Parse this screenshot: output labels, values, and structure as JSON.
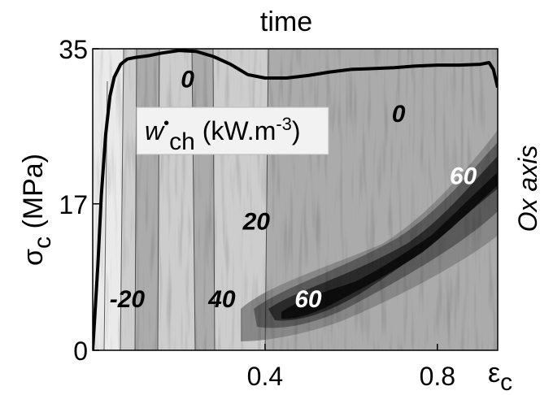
{
  "chart_data": {
    "type": "heatmap",
    "title": "time",
    "x_axis": {
      "symbol": "ε",
      "subscript": "c",
      "ticks": [
        "0.4",
        "0.8"
      ],
      "range": [
        0,
        0.94
      ]
    },
    "y_axis": {
      "symbol": "σ",
      "subscript": "c",
      "unit": " (MPa)",
      "ticks": [
        "0",
        "17",
        "35"
      ],
      "range": [
        0,
        35
      ]
    },
    "right_label": "Ox axis",
    "legend": {
      "prefix": "w",
      "mark": "•",
      "subscript": "ch",
      "unit": " (kW.m",
      "exponent": "-3",
      "close": ")"
    },
    "contour_labels": [
      {
        "text": "0",
        "x": 0.22,
        "y": 30.5,
        "color": "#000000"
      },
      {
        "text": "0",
        "x": 0.71,
        "y": 26.5,
        "color": "#000000"
      },
      {
        "text": "20",
        "x": 0.38,
        "y": 14.0,
        "color": "#000000"
      },
      {
        "text": "-20",
        "x": 0.08,
        "y": 5.0,
        "color": "#000000"
      },
      {
        "text": "40",
        "x": 0.3,
        "y": 5.0,
        "color": "#000000"
      },
      {
        "text": "60",
        "x": 0.5,
        "y": 5.0,
        "color": "#ffffff"
      },
      {
        "text": "60",
        "x": 0.86,
        "y": 19.3,
        "color": "#ffffff"
      }
    ],
    "stress_curve": {
      "x": [
        0,
        0.005,
        0.012,
        0.02,
        0.03,
        0.04,
        0.05,
        0.065,
        0.08,
        0.1,
        0.13,
        0.16,
        0.2,
        0.24,
        0.28,
        0.32,
        0.36,
        0.4,
        0.45,
        0.5,
        0.55,
        0.6,
        0.65,
        0.7,
        0.75,
        0.8,
        0.85,
        0.9,
        0.92,
        0.93,
        0.94
      ],
      "y": [
        0,
        4,
        10,
        18,
        25,
        29.5,
        31.7,
        33.2,
        33.8,
        34.0,
        34.2,
        34.5,
        34.8,
        34.7,
        34.1,
        33.2,
        32.0,
        31.6,
        31.6,
        31.9,
        32.3,
        32.6,
        32.7,
        32.8,
        33.0,
        33.1,
        33.1,
        33.2,
        33.4,
        32.6,
        30.5
      ]
    },
    "colors": {
      "level_0": "#eaeaea",
      "level_1": "#cdcdcd",
      "level_2": "#ababab",
      "level_3": "#888888",
      "level_4": "#5a5a5a",
      "level_5": "#2a2a2a",
      "level_6": "#0d0d0d"
    }
  }
}
